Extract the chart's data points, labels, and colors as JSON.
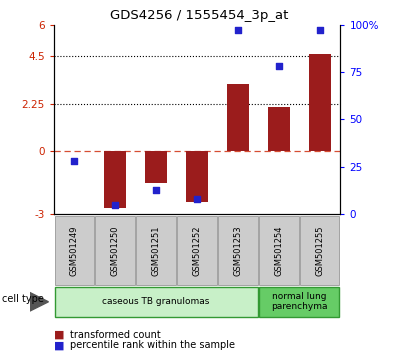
{
  "title": "GDS4256 / 1555454_3p_at",
  "samples": [
    "GSM501249",
    "GSM501250",
    "GSM501251",
    "GSM501252",
    "GSM501253",
    "GSM501254",
    "GSM501255"
  ],
  "transformed_count": [
    0.02,
    -2.7,
    -1.5,
    -2.4,
    3.2,
    2.1,
    4.6
  ],
  "percentile_rank": [
    28,
    5,
    13,
    8,
    97,
    78,
    97
  ],
  "ylim_left": [
    -3,
    6
  ],
  "ylim_right": [
    0,
    100
  ],
  "yticks_left": [
    -3,
    0,
    2.25,
    4.5,
    6
  ],
  "ytick_labels_left": [
    "-3",
    "0",
    "2.25",
    "4.5",
    "6"
  ],
  "yticks_right": [
    0,
    25,
    50,
    75,
    100
  ],
  "ytick_labels_right": [
    "0",
    "25",
    "50",
    "75",
    "100%"
  ],
  "bar_color": "#9B1C1C",
  "dot_color": "#2222CC",
  "cell_type_groups": [
    {
      "label": "caseous TB granulomas",
      "indices": [
        0,
        1,
        2,
        3,
        4
      ],
      "color": "#c8f0c8"
    },
    {
      "label": "normal lung\nparenchyma",
      "indices": [
        5,
        6
      ],
      "color": "#66cc66"
    }
  ],
  "legend_bar_label": "transformed count",
  "legend_dot_label": "percentile rank within the sample",
  "bar_width": 0.55
}
